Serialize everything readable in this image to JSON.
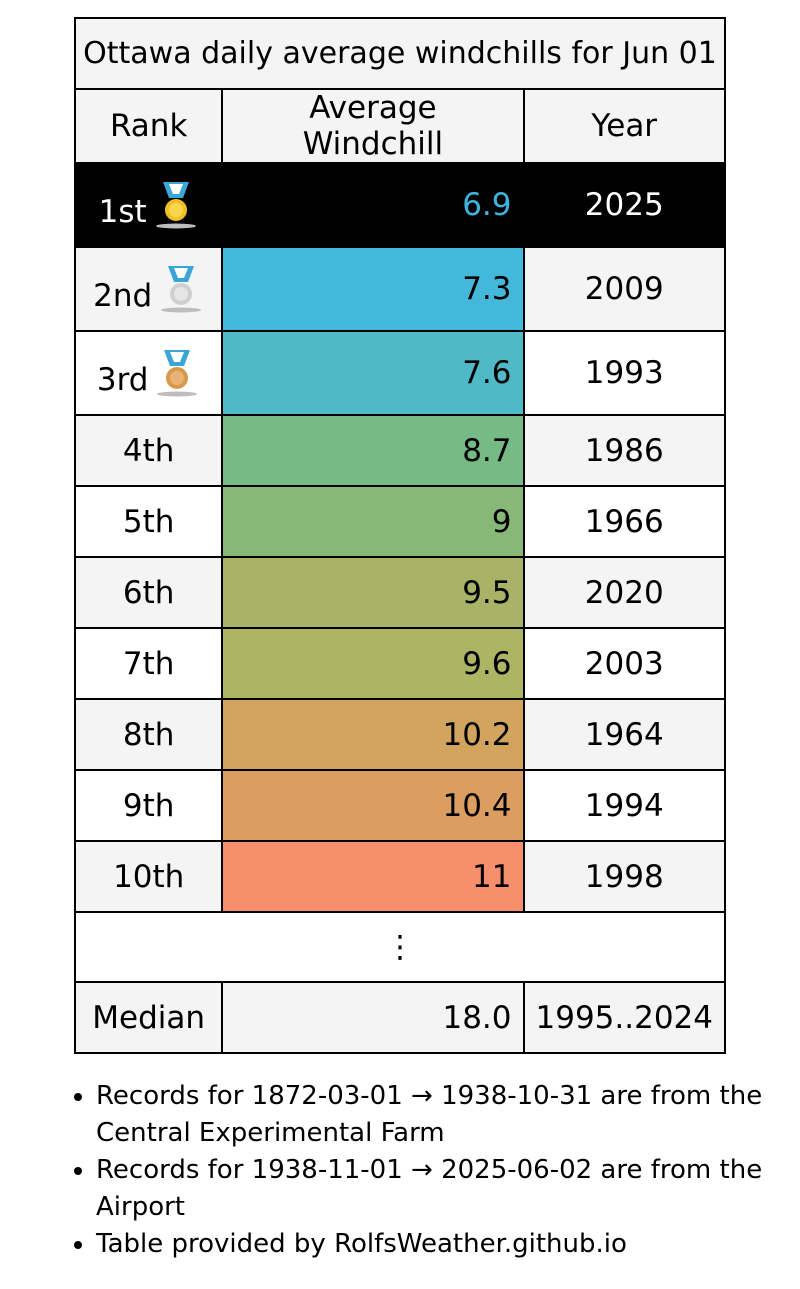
{
  "table": {
    "title": "Ottawa daily average windchills for Jun 01",
    "headers": {
      "rank": "Rank",
      "value": "Average Windchill",
      "year": "Year"
    },
    "rows": [
      {
        "rank": "1st",
        "value": "6.9",
        "year": "2025",
        "medal": "gold-medal-icon",
        "color": "#000000"
      },
      {
        "rank": "2nd",
        "value": "7.3",
        "year": "2009",
        "medal": "silver-medal-icon",
        "color": "#43b8da"
      },
      {
        "rank": "3rd",
        "value": "7.6",
        "year": "1993",
        "medal": "bronze-medal-icon",
        "color": "#50b9c8"
      },
      {
        "rank": "4th",
        "value": "8.7",
        "year": "1986",
        "color": "#76bb85"
      },
      {
        "rank": "5th",
        "value": "9",
        "year": "1966",
        "color": "#88b877"
      },
      {
        "rank": "6th",
        "value": "9.5",
        "year": "2020",
        "color": "#a9b368"
      },
      {
        "rank": "7th",
        "value": "9.6",
        "year": "2003",
        "color": "#adb565"
      },
      {
        "rank": "8th",
        "value": "10.2",
        "year": "1964",
        "color": "#d3a45e"
      },
      {
        "rank": "9th",
        "value": "10.4",
        "year": "1994",
        "color": "#db9e60"
      },
      {
        "rank": "10th",
        "value": "11",
        "year": "1998",
        "color": "#f68f6b"
      }
    ],
    "ellipsis": "⋮",
    "median": {
      "label": "Median",
      "value": "18.0",
      "years": "1995..2024"
    },
    "highlight_text_color": "#3eb4dc"
  },
  "notes": [
    "Records for 1872-03-01 → 1938-10-31 are from the Central Experimental Farm",
    "Records for 1938-11-01 → 2025-06-02 are from the Airport",
    "Table provided by RolfsWeather.github.io"
  ]
}
